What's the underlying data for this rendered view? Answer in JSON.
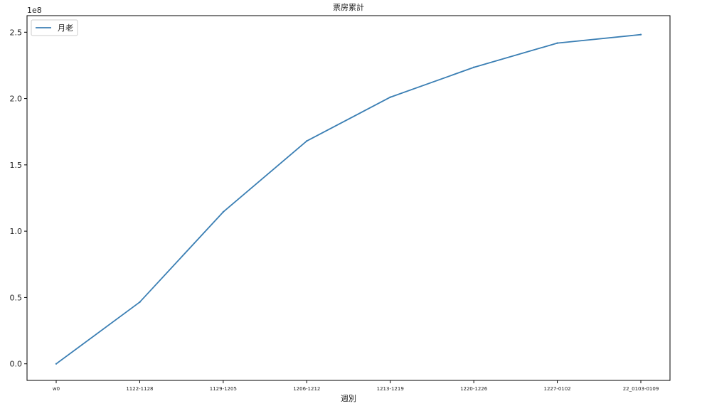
{
  "chart_data": {
    "type": "line",
    "title": "票房累計",
    "xlabel": "週別",
    "ylabel": "",
    "y_scale_label": "1e8",
    "categories": [
      "w0",
      "1122-1128",
      "1129-1205",
      "1206-1212",
      "1213-1219",
      "1220-1226",
      "1227-0102",
      "22_0103-0109"
    ],
    "series": [
      {
        "name": "月老",
        "color": "#3b7fb4",
        "values": [
          0,
          46500000,
          114500000,
          168000000,
          201000000,
          223500000,
          241800000,
          248200000
        ]
      }
    ],
    "ylim": [
      -12500000,
      262500000
    ],
    "yticks": [
      0,
      50000000,
      100000000,
      150000000,
      200000000,
      250000000
    ],
    "ytick_labels": [
      "0.0",
      "0.5",
      "1.0",
      "1.5",
      "2.0",
      "2.5"
    ],
    "grid": false,
    "legend_position": "top-left"
  }
}
